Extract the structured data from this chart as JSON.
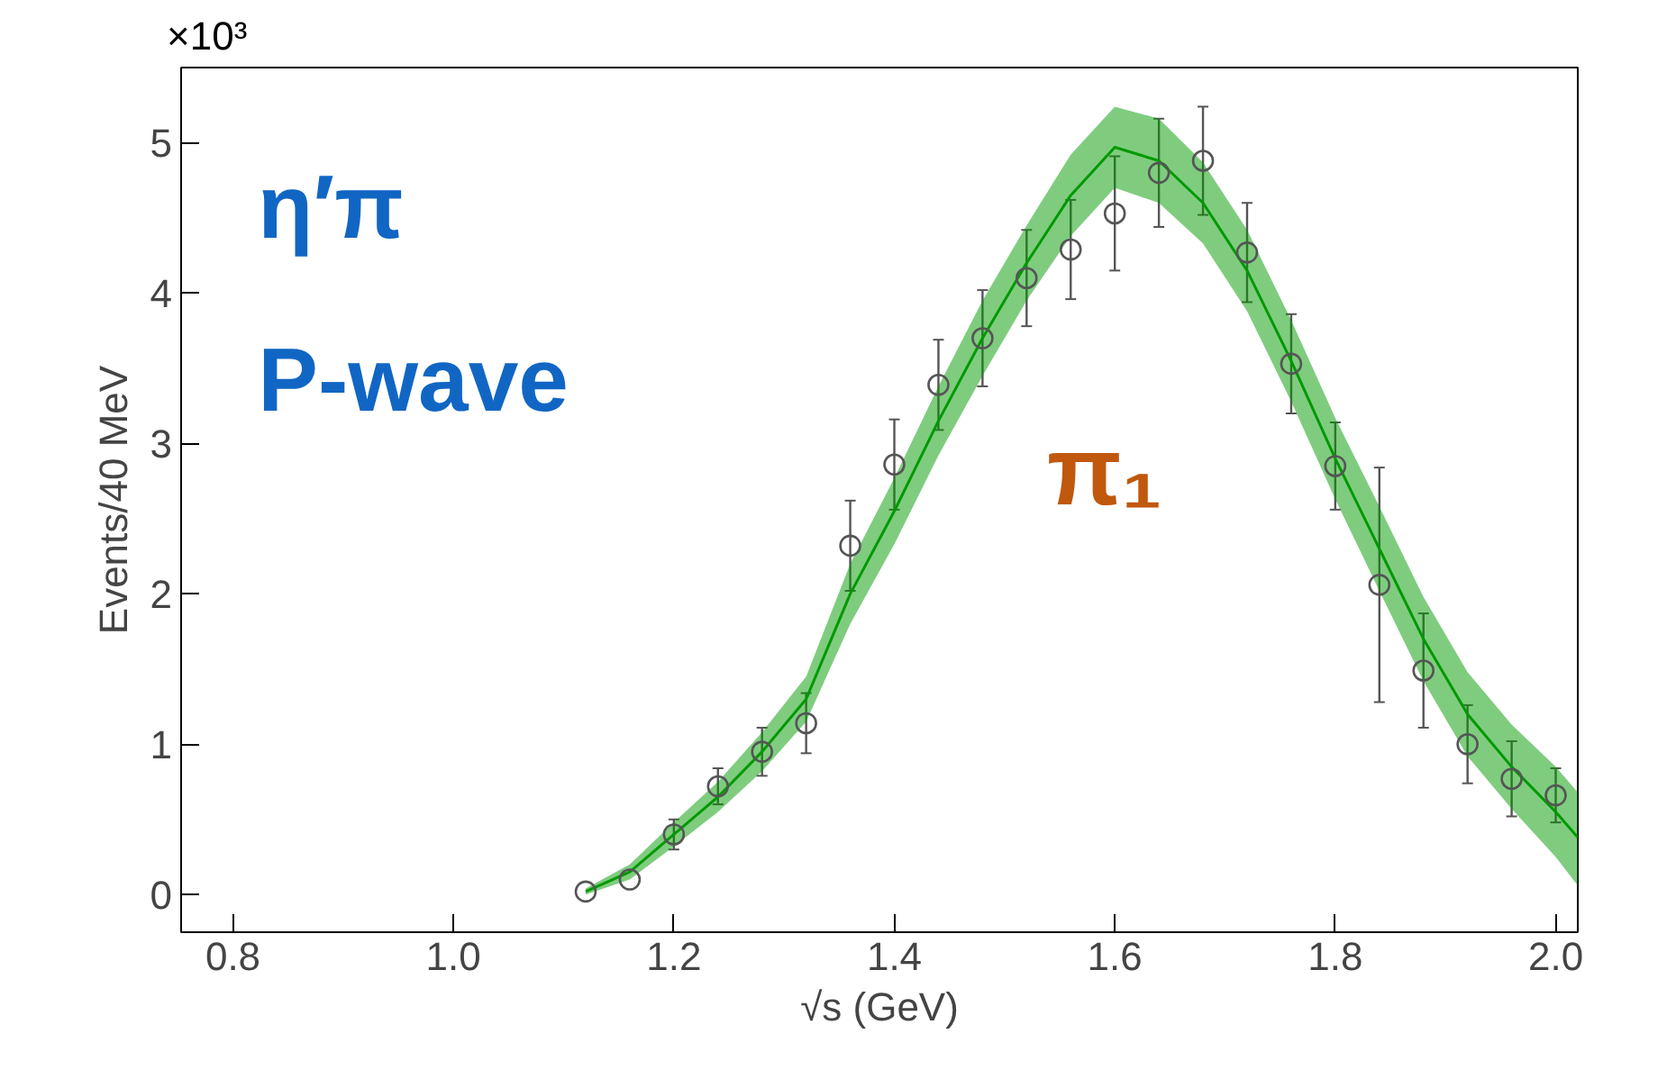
{
  "chart_data": {
    "type": "scatter",
    "xlabel": "√s (GeV)",
    "ylabel": "Events/40 MeV",
    "annotations": [
      "×10³",
      "η′π",
      "P-wave",
      "π₁"
    ],
    "series": [
      {
        "type": "line",
        "color": "#009900",
        "marker": "none",
        "x": [
          1.12,
          1.16,
          1.2,
          1.24,
          1.28,
          1.32,
          1.36,
          1.4,
          1.44,
          1.48,
          1.52,
          1.56,
          1.6,
          1.64,
          1.68,
          1.72,
          1.76,
          1.8,
          1.84,
          1.88,
          1.92,
          1.96,
          2.0,
          2.02
        ],
        "values": [
          0.02,
          0.15,
          0.4,
          0.65,
          0.95,
          1.3,
          2.0,
          2.55,
          3.15,
          3.7,
          4.2,
          4.65,
          4.97,
          4.88,
          4.6,
          4.15,
          3.55,
          2.9,
          2.3,
          1.7,
          1.2,
          0.85,
          0.55,
          0.38
        ],
        "lower": [
          0.0,
          0.1,
          0.32,
          0.55,
          0.82,
          1.15,
          1.8,
          2.33,
          2.92,
          3.45,
          3.95,
          4.38,
          4.7,
          4.6,
          4.33,
          3.88,
          3.28,
          2.63,
          2.02,
          1.42,
          0.92,
          0.57,
          0.25,
          0.06
        ],
        "upper": [
          0.04,
          0.2,
          0.48,
          0.75,
          1.08,
          1.45,
          2.2,
          2.77,
          3.38,
          3.95,
          4.45,
          4.92,
          5.24,
          5.16,
          4.87,
          4.42,
          3.82,
          3.17,
          2.58,
          1.98,
          1.48,
          1.13,
          0.85,
          0.68
        ]
      },
      {
        "color": "#555555",
        "x": [
          1.12,
          1.16,
          1.2,
          1.24,
          1.28,
          1.32,
          1.36,
          1.4,
          1.44,
          1.48,
          1.52,
          1.56,
          1.6,
          1.64,
          1.68,
          1.72,
          1.76,
          1.8,
          1.84,
          1.88,
          1.92,
          1.96,
          2.0
        ],
        "values": [
          0.02,
          0.1,
          0.4,
          0.72,
          0.95,
          1.14,
          2.32,
          2.86,
          3.39,
          3.7,
          4.1,
          4.29,
          4.53,
          4.8,
          4.88,
          4.27,
          3.53,
          2.85,
          2.06,
          1.49,
          1.0,
          0.77,
          0.66
        ],
        "errors": [
          null,
          null,
          0.1,
          0.12,
          0.16,
          0.2,
          0.3,
          0.3,
          0.3,
          0.32,
          0.32,
          0.33,
          0.38,
          0.36,
          0.36,
          0.33,
          0.33,
          0.29,
          0.78,
          0.38,
          0.26,
          0.25,
          0.18
        ]
      }
    ],
    "xlim": [
      0.753,
      2.02
    ],
    "ylim": [
      -0.25,
      5.5
    ],
    "xticks": [
      {
        "value": 0.8,
        "label": "0.8"
      },
      {
        "value": 1.0,
        "label": "1.0"
      },
      {
        "value": 1.2,
        "label": "1.2"
      },
      {
        "value": 1.4,
        "label": "1.4"
      },
      {
        "value": 1.6,
        "label": "1.6"
      },
      {
        "value": 1.8,
        "label": "1.8"
      },
      {
        "value": 2.0,
        "label": "2.0"
      }
    ],
    "yticks": [
      0,
      1,
      2,
      3,
      4,
      5
    ],
    "grid": false,
    "marker": "circle"
  }
}
